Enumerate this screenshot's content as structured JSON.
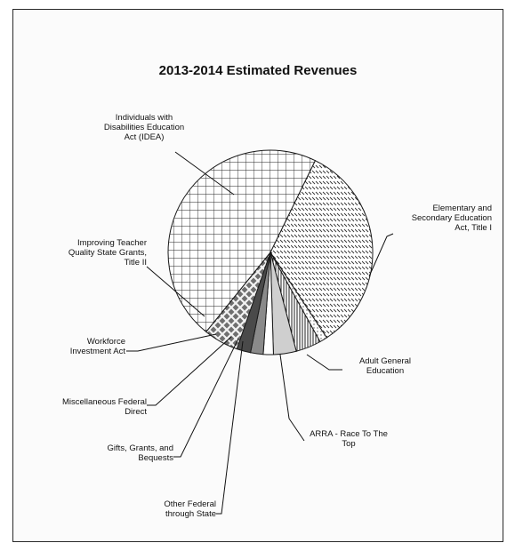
{
  "chart_data": {
    "type": "pie",
    "title": "2013-2014 Estimated Revenues",
    "slices": [
      {
        "label": "Elementary and Secondary Education Act, Title I",
        "value": 33.5,
        "pattern": "diag"
      },
      {
        "label": "Adult General Education",
        "value": 1.2,
        "pattern": "dots"
      },
      {
        "label": "ARRA - Race To The Top",
        "value": 4.0,
        "pattern": "vlines"
      },
      {
        "label": "Other Federal through State",
        "value": 3.6,
        "pattern": "lightgray"
      },
      {
        "label": "Gifts, Grants, and Bequests",
        "value": 1.6,
        "pattern": "white"
      },
      {
        "label": "Miscellaneous Federal Direct",
        "value": 2.0,
        "pattern": "midgray"
      },
      {
        "label": "Workforce Investment Act",
        "value": 2.2,
        "pattern": "darkgray"
      },
      {
        "label": "Improving Teacher Quality State Grants, Title II",
        "value": 5.5,
        "pattern": "crosshatch"
      },
      {
        "label": "Individuals with Disabilities Education Act (IDEA)",
        "value": 46.4,
        "pattern": "grid"
      }
    ]
  },
  "labels": {
    "idea": "Individuals with\nDisabilities Education\nAct (IDEA)",
    "title1": "Elementary and\nSecondary Education\nAct, Title I",
    "title2": "Improving Teacher\nQuality State Grants,\nTitle II",
    "wia": "Workforce\nInvestment Act",
    "misc": "Miscellaneous Federal\nDirect",
    "gifts": "Gifts, Grants, and\nBequests",
    "other": "Other Federal\nthrough State",
    "arra": "ARRA - Race To The\nTop",
    "adult": "Adult General\nEducation"
  }
}
